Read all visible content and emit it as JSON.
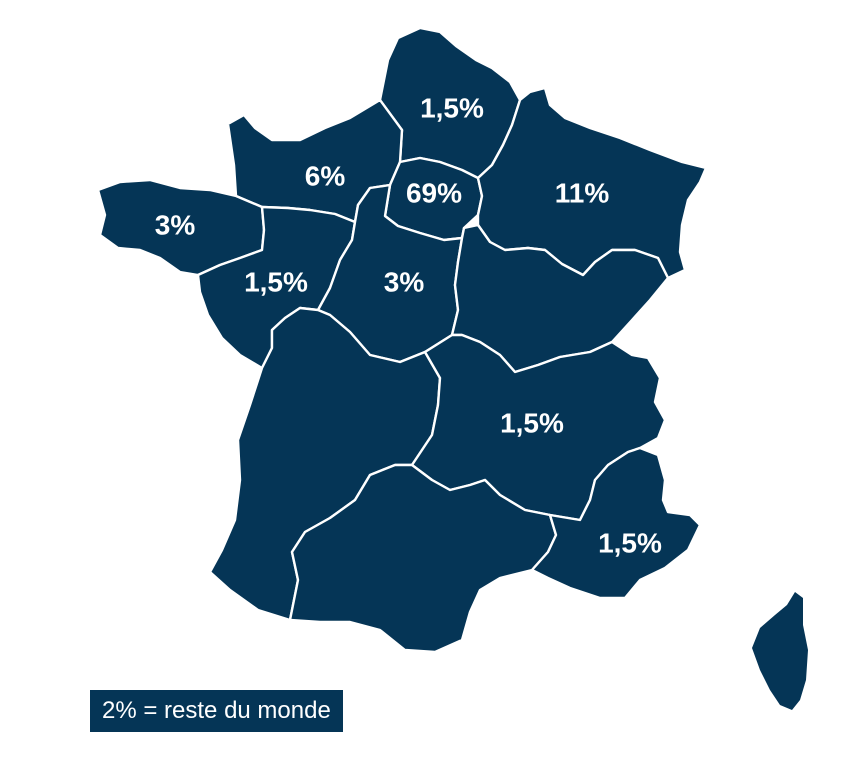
{
  "map": {
    "fill_color": "#053556",
    "border_color": "#ffffff",
    "regions": [
      {
        "id": "hauts-de-france",
        "value": "1,5%"
      },
      {
        "id": "normandie",
        "value": "6%"
      },
      {
        "id": "ile-de-france",
        "value": "69%"
      },
      {
        "id": "grand-est",
        "value": "11%"
      },
      {
        "id": "bretagne",
        "value": "3%"
      },
      {
        "id": "pays-de-la-loire",
        "value": "1,5%"
      },
      {
        "id": "centre-val-de-loire",
        "value": "3%"
      },
      {
        "id": "bourgogne-franche-comte",
        "value": ""
      },
      {
        "id": "nouvelle-aquitaine",
        "value": ""
      },
      {
        "id": "auvergne-rhone-alpes",
        "value": "1,5%"
      },
      {
        "id": "occitanie",
        "value": ""
      },
      {
        "id": "provence-alpes-cote-d-azur",
        "value": "1,5%"
      },
      {
        "id": "corse",
        "value": ""
      }
    ]
  },
  "legend": {
    "text": "2% = reste du monde"
  }
}
